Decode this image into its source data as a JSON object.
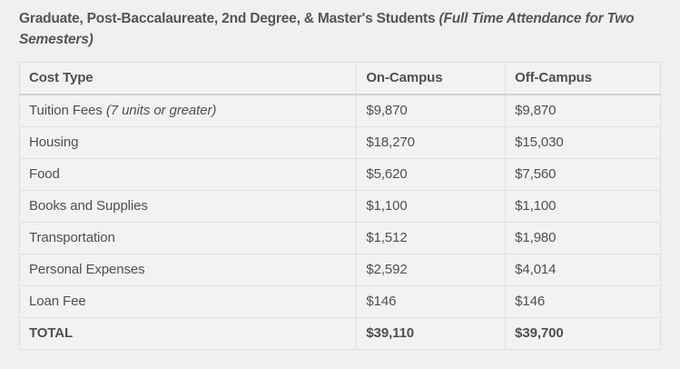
{
  "title": {
    "regular": "Graduate, Post-Baccalaureate, 2nd Degree, & Master's Students ",
    "italic": "(Full Time Attendance for Two Semesters)"
  },
  "table": {
    "columns": [
      "Cost Type",
      "On-Campus",
      "Off-Campus"
    ],
    "rows": [
      {
        "label": "Tuition Fees ",
        "label_italic": "(7 units or greater)",
        "on_campus": "$9,870",
        "off_campus": "$9,870"
      },
      {
        "label": "Housing",
        "on_campus": "$18,270",
        "off_campus": "$15,030"
      },
      {
        "label": "Food",
        "on_campus": "$5,620",
        "off_campus": "$7,560"
      },
      {
        "label": "Books and Supplies",
        "on_campus": "$1,100",
        "off_campus": "$1,100"
      },
      {
        "label": "Transportation",
        "on_campus": "$1,512",
        "off_campus": "$1,980"
      },
      {
        "label": "Personal Expenses",
        "on_campus": "$2,592",
        "off_campus": "$4,014"
      },
      {
        "label": "Loan Fee",
        "on_campus": "$146",
        "off_campus": "$146"
      }
    ],
    "total": {
      "label": "TOTAL",
      "on_campus": "$39,110",
      "off_campus": "$39,700"
    }
  },
  "colors": {
    "page_background": "#f0f0f1",
    "cell_background": "#f2f2f2",
    "border": "#e0e0e0",
    "header_bottom_border": "#d3d3d3",
    "text": "#4e4f54",
    "title_text": "#54555a"
  }
}
